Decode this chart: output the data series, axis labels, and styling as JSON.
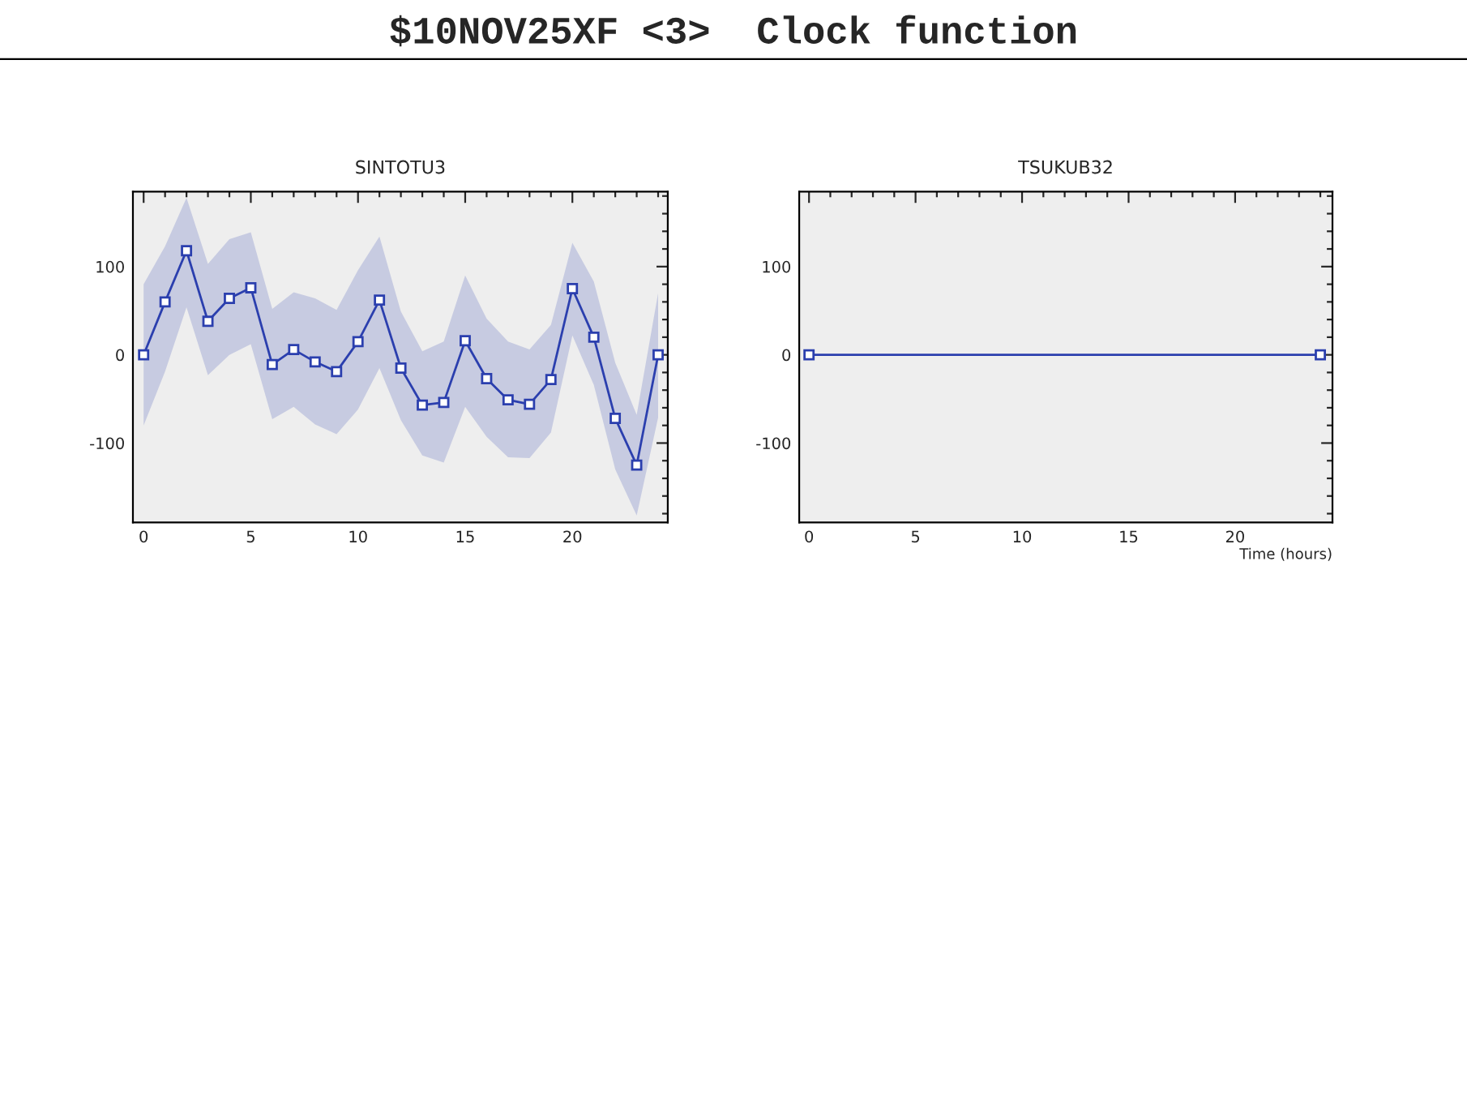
{
  "chart_data": [
    {
      "type": "line",
      "title": "SINTOTU3",
      "annotations": [
        "$10NOV25XF <3>  Clock function"
      ],
      "marker": "square",
      "grid": false,
      "legend": false,
      "xlim": [
        -0.5,
        24.45
      ],
      "ylim": [
        -190,
        185
      ],
      "xticks": [
        0,
        5,
        10,
        15,
        20
      ],
      "yticks": [
        -100,
        0,
        100
      ],
      "series": [
        {
          "color": "#2b3fae",
          "x": [
            0,
            1,
            2,
            3,
            4,
            5,
            6,
            7,
            8,
            9,
            10,
            11,
            12,
            13,
            14,
            15,
            16,
            17,
            18,
            19,
            20,
            21,
            22,
            23,
            24
          ],
          "values": [
            0,
            60,
            118,
            38,
            64,
            76,
            -11,
            6,
            -8,
            -19,
            15,
            62,
            -15,
            -57,
            -54,
            16,
            -27,
            -51,
            -56,
            -28,
            75,
            20,
            -72,
            -125,
            0
          ],
          "upper": [
            80,
            123,
            178,
            103,
            131,
            139,
            52,
            71,
            64,
            51,
            96,
            134,
            49,
            4,
            15,
            90,
            41,
            15,
            6,
            34,
            127,
            83,
            -9,
            -68,
            70
          ],
          "lower": [
            -80,
            -19,
            54,
            -23,
            0,
            12,
            -73,
            -59,
            -79,
            -90,
            -62,
            -15,
            -74,
            -114,
            -122,
            -59,
            -93,
            -116,
            -117,
            -88,
            22,
            -34,
            -130,
            -182,
            -71
          ]
        }
      ]
    },
    {
      "type": "line",
      "title": "TSUKUB32",
      "xlabel": "Time (hours)",
      "marker": "square",
      "grid": false,
      "legend": false,
      "xlim": [
        -0.46,
        24.57
      ],
      "ylim": [
        -190,
        185
      ],
      "xticks": [
        0,
        5,
        10,
        15,
        20
      ],
      "yticks": [
        -100,
        0,
        100
      ],
      "series": [
        {
          "color": "#2b3fae",
          "x": [
            0,
            24
          ],
          "values": [
            0,
            0
          ]
        }
      ]
    }
  ]
}
